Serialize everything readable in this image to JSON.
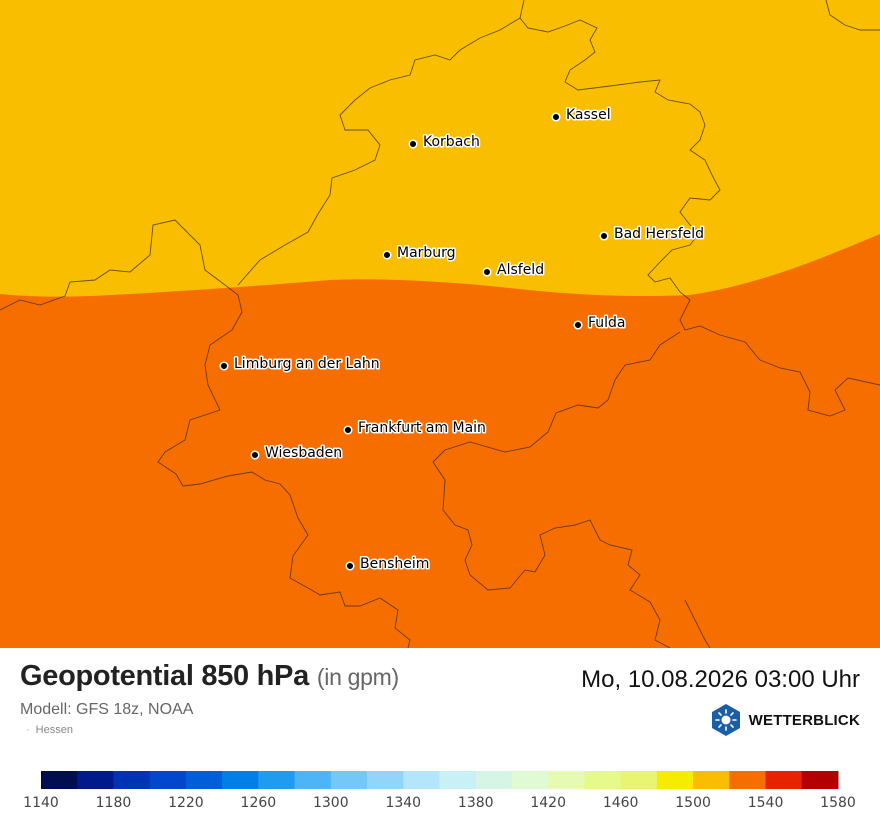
{
  "map": {
    "region": "Hessen",
    "zones": [
      {
        "name": "1500-1540 gpm",
        "color": "#f9be00"
      },
      {
        "name": "1540-1560 gpm",
        "color": "#f76e00"
      }
    ],
    "cities": [
      {
        "id": "kassel",
        "name": "Kassel"
      },
      {
        "id": "korbach",
        "name": "Korbach"
      },
      {
        "id": "bad-hersfeld",
        "name": "Bad Hersfeld"
      },
      {
        "id": "marburg",
        "name": "Marburg"
      },
      {
        "id": "alsfeld",
        "name": "Alsfeld"
      },
      {
        "id": "fulda",
        "name": "Fulda"
      },
      {
        "id": "limburg",
        "name": "Limburg an der Lahn"
      },
      {
        "id": "frankfurt",
        "name": "Frankfurt am Main"
      },
      {
        "id": "wiesbaden",
        "name": "Wiesbaden"
      },
      {
        "id": "bensheim",
        "name": "Bensheim"
      }
    ]
  },
  "header": {
    "title": "Geopotential 850 hPa",
    "unit": "(in gpm)",
    "model": "Modell: GFS 18z, NOAA",
    "region": "Hessen",
    "datetime": "Mo, 10.08.2026 03:00 Uhr"
  },
  "brand": {
    "name": "WETTERBLICK",
    "color": "#1a5ea6"
  },
  "legend": {
    "colors": [
      "#000d4f",
      "#001a8c",
      "#0033b3",
      "#0047cc",
      "#005ed9",
      "#0080e6",
      "#1f9cf0",
      "#4db5f5",
      "#73c8f7",
      "#91d6fa",
      "#b3e6fa",
      "#c8f0f5",
      "#d6f5e6",
      "#e0fad6",
      "#e6fab3",
      "#e6fa8c",
      "#e8f573",
      "#f5ec00",
      "#f9be00",
      "#f76e00",
      "#e62200",
      "#b30000"
    ],
    "tick_labels": [
      "1140",
      "1180",
      "1220",
      "1260",
      "1300",
      "1340",
      "1380",
      "1420",
      "1460",
      "1500",
      "1540",
      "1580"
    ]
  }
}
